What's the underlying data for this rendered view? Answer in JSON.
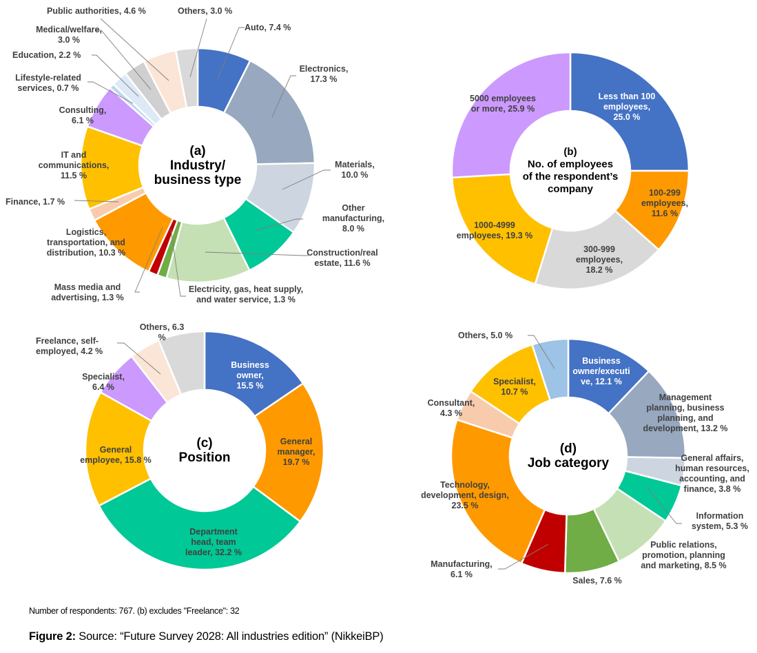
{
  "chart_data": [
    {
      "id": "a",
      "type": "pie",
      "variant": "donut",
      "title": "(a)\nIndustry/\nbusiness type",
      "start": "top",
      "direction": "clockwise",
      "unit": "%",
      "slices": [
        {
          "label": "Auto",
          "value": 7.4,
          "text": "Auto, 7.4 %",
          "color": "#4472c4"
        },
        {
          "label": "Electronics",
          "value": 17.3,
          "text": "Electronics,\n17.3 %",
          "color": "#97a8bf"
        },
        {
          "label": "Materials",
          "value": 10.0,
          "text": "Materials,\n10.0 %",
          "color": "#ccd5e0"
        },
        {
          "label": "Other manufacturing",
          "value": 8.0,
          "text": "Other\nmanufacturing,\n8.0 %",
          "color": "#00c896"
        },
        {
          "label": "Construction/real estate",
          "value": 11.6,
          "text": "Construction/real\nestate, 11.6 %",
          "color": "#c5e0b4"
        },
        {
          "label": "Electricity, gas, heat supply, and water service",
          "value": 1.3,
          "text": "Electricity, gas, heat supply,\nand water service, 1.3 %",
          "color": "#70ad47"
        },
        {
          "label": "Mass media and advertising",
          "value": 1.3,
          "text": "Mass media and\nadvertising, 1.3 %",
          "color": "#c00000"
        },
        {
          "label": "Logistics, transportation, and distribution",
          "value": 10.3,
          "text": "Logistics,\ntransportation, and\ndistribution, 10.3 %",
          "color": "#ff9900"
        },
        {
          "label": "Finance",
          "value": 1.7,
          "text": "Finance, 1.7 %",
          "color": "#f8cbad"
        },
        {
          "label": "IT and communications",
          "value": 11.5,
          "text": "IT and\ncommunications,\n11.5 %",
          "color": "#ffc000"
        },
        {
          "label": "Consulting",
          "value": 6.1,
          "text": "Consulting,\n6.1 %",
          "color": "#cc99ff"
        },
        {
          "label": "Lifestyle-related services",
          "value": 0.7,
          "text": "Lifestyle-related\nservices, 0.7 %",
          "color": "#bdd7ee"
        },
        {
          "label": "Education",
          "value": 2.2,
          "text": "Education, 2.2 %",
          "color": "#dde9f6"
        },
        {
          "label": "Medical/welfare",
          "value": 3.0,
          "text": "Medical/welfare,\n3.0 %",
          "color": "#d0d0d0"
        },
        {
          "label": "Public authorities",
          "value": 4.6,
          "text": "Public authorities, 4.6 %",
          "color": "#fbe5d6"
        },
        {
          "label": "Others",
          "value": 3.0,
          "text": "Others, 3.0 %",
          "color": "#d9d9d9"
        }
      ]
    },
    {
      "id": "b",
      "type": "pie",
      "variant": "donut",
      "title": "(b)\nNo. of employees\nof the respondent’s\ncompany",
      "start": "top",
      "direction": "clockwise",
      "unit": "%",
      "slices": [
        {
          "label": "Less than 100 employees",
          "value": 25.0,
          "text": "Less than 100\nemployees,\n25.0 %",
          "color": "#4472c4"
        },
        {
          "label": "100-299 employees",
          "value": 11.6,
          "text": "100-299\nemployees,\n11.6 %",
          "color": "#ff9900"
        },
        {
          "label": "300-999 employees",
          "value": 18.2,
          "text": "300-999\nemployees,\n18.2 %",
          "color": "#d9d9d9"
        },
        {
          "label": "1000-4999 employees",
          "value": 19.3,
          "text": "1000-4999\nemployees, 19.3 %",
          "color": "#ffc000"
        },
        {
          "label": "5000 employees or more",
          "value": 25.9,
          "text": "5000 employees\nor more, 25.9 %",
          "color": "#cc99ff"
        }
      ]
    },
    {
      "id": "c",
      "type": "pie",
      "variant": "donut",
      "title": "(c)\nPosition",
      "start": "top",
      "direction": "clockwise",
      "unit": "%",
      "slices": [
        {
          "label": "Business owner",
          "value": 15.5,
          "text": "Business\nowner,\n15.5 %",
          "color": "#4472c4"
        },
        {
          "label": "General manager",
          "value": 19.7,
          "text": "General\nmanager,\n19.7 %",
          "color": "#ff9900"
        },
        {
          "label": "Department head, team leader",
          "value": 32.2,
          "text": "Department\nhead, team\nleader, 32.2 %",
          "color": "#00c896"
        },
        {
          "label": "General employee",
          "value": 15.8,
          "text": "General\nemployee, 15.8 %",
          "color": "#ffc000"
        },
        {
          "label": "Specialist",
          "value": 6.4,
          "text": "Specialist,\n6.4 %",
          "color": "#cc99ff"
        },
        {
          "label": "Freelance, self-employed",
          "value": 4.2,
          "text": "Freelance, self-\nemployed, 4.2 %",
          "color": "#fbe5d6"
        },
        {
          "label": "Others",
          "value": 6.3,
          "text": "Others, 6.3 %",
          "color": "#d9d9d9"
        }
      ]
    },
    {
      "id": "d",
      "type": "pie",
      "variant": "donut",
      "title": "(d)\nJob category",
      "start": "top",
      "direction": "clockwise",
      "unit": "%",
      "slices": [
        {
          "label": "Business owner/executive",
          "value": 12.1,
          "text": "Business\nowner/executi\nve, 12.1 %",
          "color": "#4472c4"
        },
        {
          "label": "Management planning, business planning, and development",
          "value": 13.2,
          "text": "Management\nplanning, business\nplanning, and\ndevelopment, 13.2 %",
          "color": "#97a8bf"
        },
        {
          "label": "General affairs, human resources, accounting, and finance",
          "value": 3.8,
          "text": "General affairs,\nhuman resources,\naccounting, and\nfinance, 3.8 %",
          "color": "#ccd5e0"
        },
        {
          "label": "Information system",
          "value": 5.3,
          "text": "Information\nsystem, 5.3 %",
          "color": "#00c896"
        },
        {
          "label": "Public relations, promotion, planning and marketing",
          "value": 8.5,
          "text": "Public relations,\npromotion, planning\nand marketing, 8.5 %",
          "color": "#c5e0b4"
        },
        {
          "label": "Sales",
          "value": 7.6,
          "text": "Sales, 7.6 %",
          "color": "#70ad47"
        },
        {
          "label": "Manufacturing",
          "value": 6.1,
          "text": "Manufacturing,\n6.1 %",
          "color": "#c00000"
        },
        {
          "label": "Technology, development, design",
          "value": 23.5,
          "text": "Technology,\ndevelopment, design,\n23.5 %",
          "color": "#ff9900"
        },
        {
          "label": "Consultant",
          "value": 4.3,
          "text": "Consultant,\n4.3 %",
          "color": "#f8cbad"
        },
        {
          "label": "Specialist",
          "value": 10.7,
          "text": "Specialist,\n10.7 %",
          "color": "#ffc000"
        },
        {
          "label": "Others",
          "value": 5.0,
          "text": "Others, 5.0 %",
          "color": "#9dc3e6"
        }
      ]
    }
  ],
  "footnote": "Number of respondents: 767. (b) excludes \"Freelance\": 32",
  "caption": {
    "prefix": "Figure 2:",
    "text": " Source: “Future Survey 2028: All industries edition” (NikkeiBP)"
  }
}
